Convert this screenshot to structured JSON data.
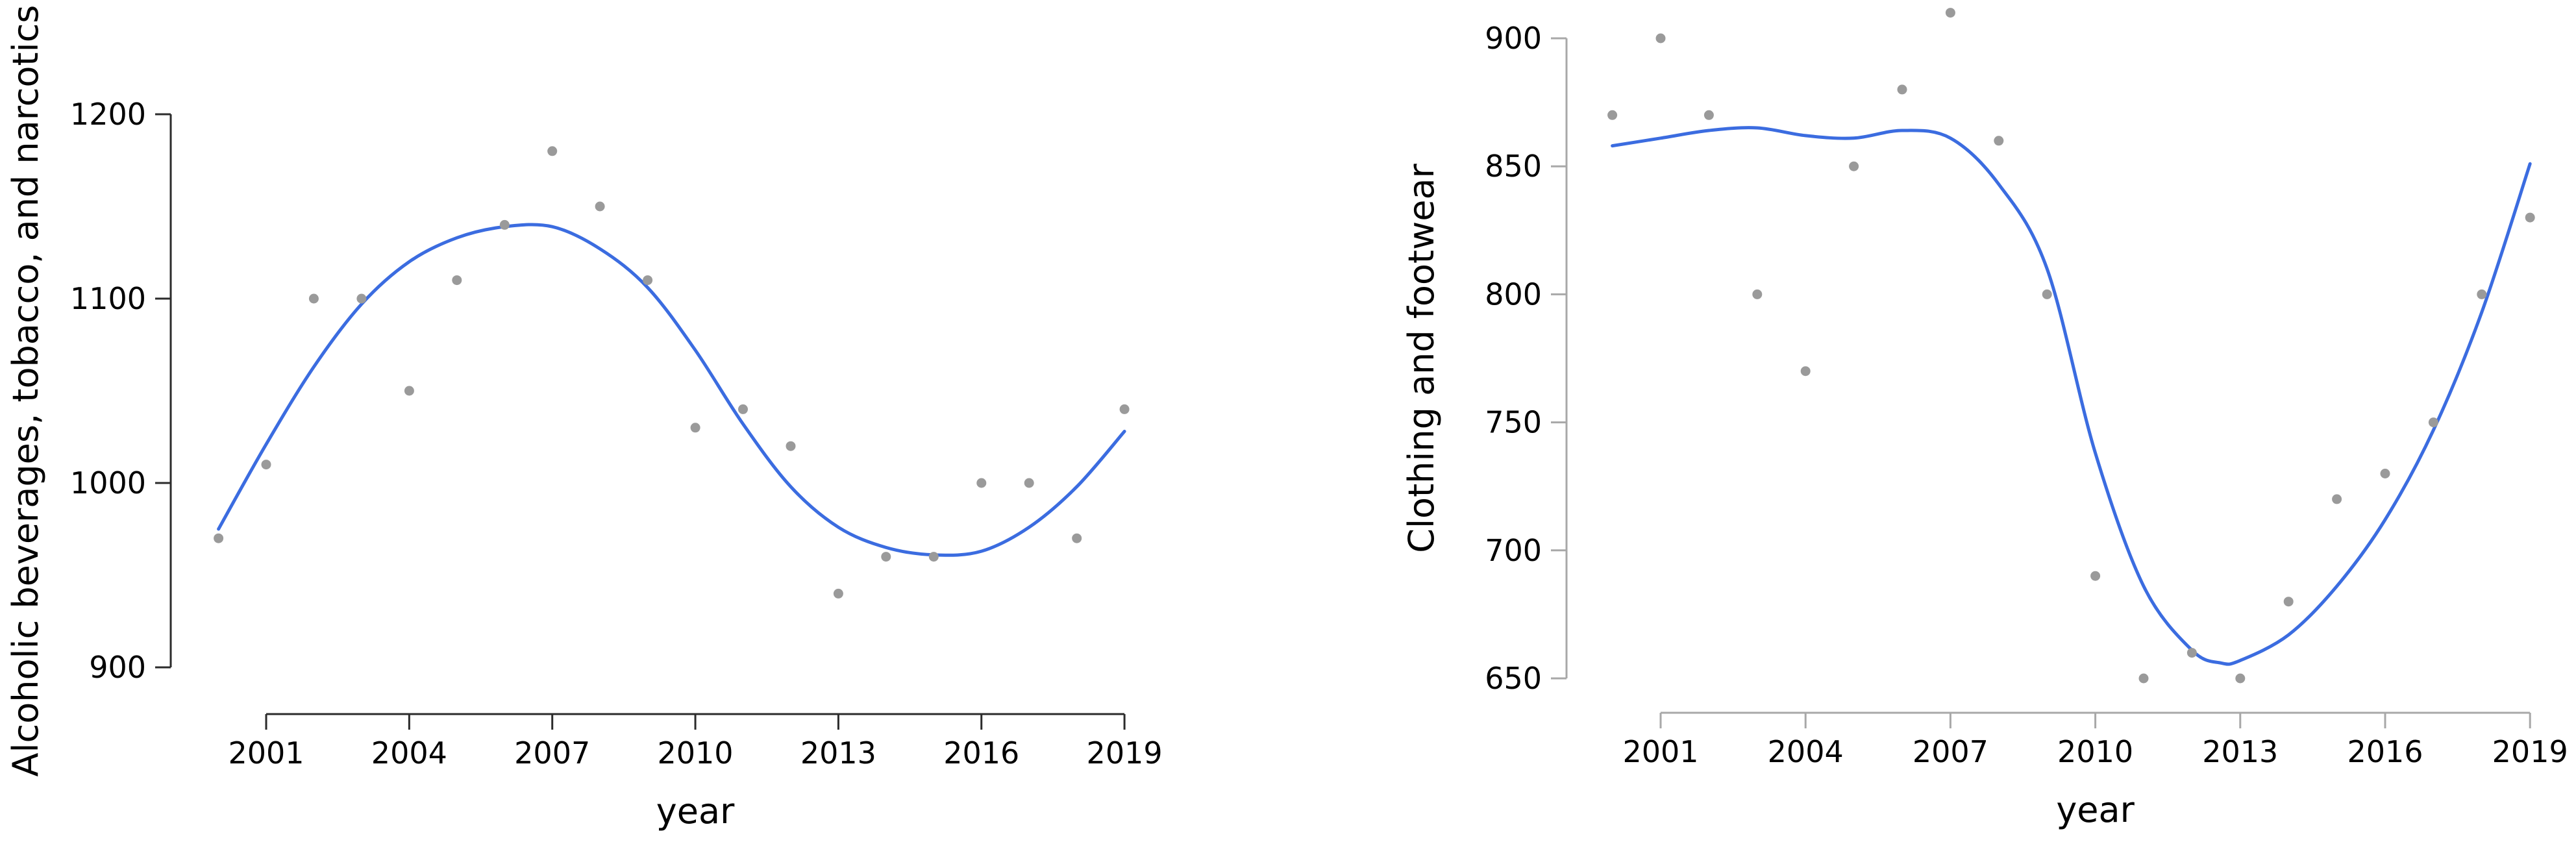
{
  "figure": {
    "background": "#ffffff",
    "description": "Two scatter plots with loess smooth trend lines of consumer spending categories by year"
  },
  "chart_data": [
    {
      "type": "scatter",
      "title": "",
      "xlabel": "year",
      "ylabel": "Alcoholic beverages, tobacco, and narcotics",
      "x": [
        2000,
        2001,
        2002,
        2003,
        2004,
        2005,
        2006,
        2007,
        2008,
        2009,
        2010,
        2011,
        2012,
        2013,
        2014,
        2015,
        2016,
        2017,
        2018,
        2019
      ],
      "values": [
        970,
        1010,
        1100,
        1100,
        1050,
        1110,
        1140,
        1180,
        1150,
        1110,
        1030,
        1040,
        1020,
        940,
        960,
        960,
        1000,
        1000,
        970,
        1040
      ],
      "trend_line": {
        "label": "loess smooth",
        "color": "#3b6ce0",
        "points": [
          [
            2000,
            975
          ],
          [
            2001,
            1021
          ],
          [
            2002,
            1063
          ],
          [
            2003,
            1097
          ],
          [
            2004,
            1120
          ],
          [
            2005,
            1133
          ],
          [
            2006,
            1139
          ],
          [
            2007,
            1139
          ],
          [
            2008,
            1127
          ],
          [
            2009,
            1106
          ],
          [
            2010,
            1072
          ],
          [
            2011,
            1032
          ],
          [
            2012,
            998
          ],
          [
            2013,
            976
          ],
          [
            2014,
            965
          ],
          [
            2015,
            961
          ],
          [
            2016,
            963
          ],
          [
            2017,
            976
          ],
          [
            2018,
            998
          ],
          [
            2019,
            1028
          ]
        ]
      },
      "point_color": "#9a9a9a",
      "axis_color": "#2b2b2b",
      "xticks": [
        2001,
        2004,
        2007,
        2010,
        2013,
        2016,
        2019
      ],
      "yticks": [
        1200,
        1100,
        1000,
        900
      ],
      "xlim": [
        2000,
        2019
      ],
      "ylim": [
        880,
        1210
      ],
      "grid": false,
      "legend": "none"
    },
    {
      "type": "scatter",
      "title": "",
      "xlabel": "year",
      "ylabel": "Clothing and footwear",
      "x": [
        2000,
        2001,
        2002,
        2003,
        2004,
        2005,
        2006,
        2007,
        2008,
        2009,
        2010,
        2011,
        2012,
        2013,
        2014,
        2015,
        2016,
        2017,
        2018,
        2019
      ],
      "values": [
        870,
        900,
        870,
        800,
        770,
        850,
        880,
        910,
        860,
        800,
        690,
        650,
        660,
        650,
        680,
        720,
        730,
        750,
        800,
        830
      ],
      "trend_line": {
        "label": "loess smooth",
        "color": "#3b6ce0",
        "points": [
          [
            2000,
            858
          ],
          [
            2001,
            861
          ],
          [
            2002,
            864
          ],
          [
            2003,
            865
          ],
          [
            2004,
            862
          ],
          [
            2005,
            861
          ],
          [
            2006,
            864
          ],
          [
            2007,
            861
          ],
          [
            2008,
            843
          ],
          [
            2009,
            810
          ],
          [
            2010,
            738
          ],
          [
            2011,
            686
          ],
          [
            2012,
            661
          ],
          [
            2012.6,
            656
          ],
          [
            2013,
            657
          ],
          [
            2014,
            667
          ],
          [
            2015,
            686
          ],
          [
            2016,
            712
          ],
          [
            2017,
            747
          ],
          [
            2018,
            793
          ],
          [
            2019,
            851
          ]
        ]
      },
      "point_color": "#9a9a9a",
      "axis_color": "#a8a8a8",
      "xticks": [
        2001,
        2004,
        2007,
        2010,
        2013,
        2016,
        2019
      ],
      "yticks": [
        900,
        850,
        800,
        750,
        700,
        650
      ],
      "xlim": [
        2000,
        2019
      ],
      "ylim": [
        640,
        915
      ],
      "grid": false,
      "legend": "none"
    }
  ]
}
